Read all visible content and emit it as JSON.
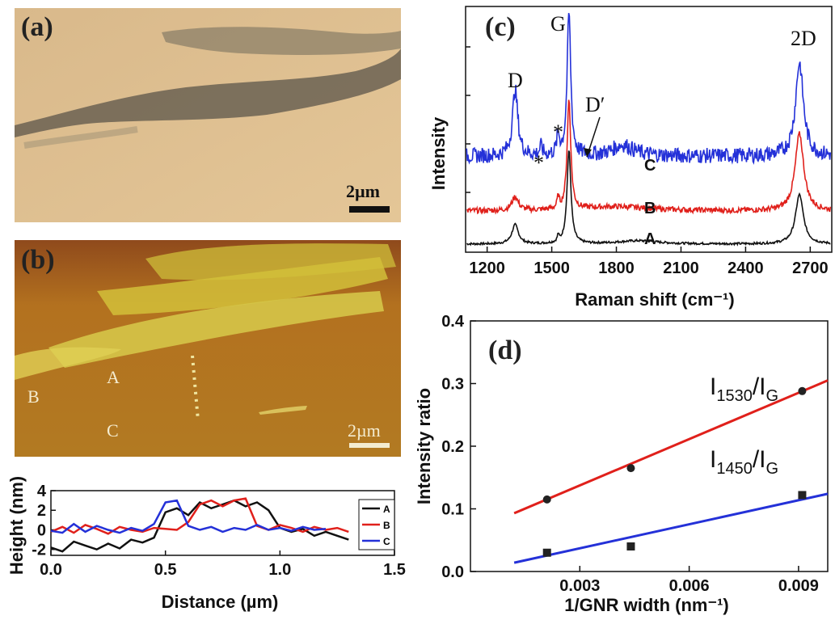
{
  "panels": {
    "a": {
      "label": "(a)",
      "scale_bar": "2µm"
    },
    "b": {
      "label": "(b)",
      "scale_bar": "2µm",
      "markers": [
        "A",
        "B",
        "C"
      ]
    },
    "c": {
      "label": "(c)"
    },
    "d": {
      "label": "(d)"
    }
  },
  "chart_data": [
    {
      "id": "profile",
      "type": "line",
      "xlabel": "Distance (µm)",
      "ylabel": "Height (nm)",
      "xlim": [
        0.0,
        1.5
      ],
      "ylim": [
        -2.6,
        4
      ],
      "xticks": [
        "0.0",
        "0.5",
        "1.0",
        "1.5"
      ],
      "yticks": [
        "4",
        "2",
        "0",
        "-2"
      ],
      "legend": [
        "A",
        "B",
        "C"
      ],
      "legend_position": "right",
      "series": [
        {
          "name": "A",
          "color": "#111111",
          "x": [
            0.0,
            0.05,
            0.1,
            0.15,
            0.2,
            0.25,
            0.3,
            0.35,
            0.4,
            0.45,
            0.5,
            0.55,
            0.6,
            0.65,
            0.7,
            0.75,
            0.8,
            0.85,
            0.9,
            0.95,
            1.0,
            1.05,
            1.1,
            1.15,
            1.2,
            1.25,
            1.3
          ],
          "y": [
            -1.8,
            -2.2,
            -1.2,
            -1.6,
            -2.0,
            -1.4,
            -1.9,
            -1.0,
            -1.3,
            -0.8,
            1.8,
            2.2,
            1.5,
            2.8,
            2.2,
            2.6,
            3.0,
            2.4,
            2.8,
            2.0,
            0.2,
            -0.2,
            0.1,
            -0.6,
            -0.2,
            -0.6,
            -1.0
          ]
        },
        {
          "name": "B",
          "color": "#e0201b",
          "x": [
            0.0,
            0.05,
            0.1,
            0.15,
            0.2,
            0.25,
            0.3,
            0.35,
            0.4,
            0.45,
            0.5,
            0.55,
            0.6,
            0.65,
            0.7,
            0.75,
            0.8,
            0.85,
            0.9,
            0.95,
            1.0,
            1.05,
            1.1,
            1.15,
            1.2,
            1.25,
            1.3
          ],
          "y": [
            -0.2,
            0.3,
            -0.3,
            0.5,
            0.1,
            -0.4,
            0.3,
            0.0,
            -0.2,
            0.2,
            0.1,
            0.0,
            0.8,
            2.6,
            3.0,
            2.4,
            3.0,
            3.2,
            0.4,
            0.0,
            0.5,
            0.2,
            -0.2,
            0.3,
            0.0,
            0.2,
            -0.2
          ]
        },
        {
          "name": "C",
          "color": "#2431d8",
          "x": [
            0.0,
            0.05,
            0.1,
            0.15,
            0.2,
            0.25,
            0.3,
            0.35,
            0.4,
            0.45,
            0.5,
            0.55,
            0.6,
            0.65,
            0.7,
            0.75,
            0.8,
            0.85,
            0.9,
            0.95,
            1.0,
            1.05,
            1.1,
            1.15,
            1.2
          ],
          "y": [
            -0.1,
            -0.3,
            0.6,
            -0.2,
            0.4,
            0.0,
            -0.3,
            0.2,
            -0.1,
            0.6,
            2.8,
            3.0,
            0.4,
            0.0,
            0.3,
            -0.2,
            0.2,
            0.0,
            0.5,
            0.0,
            0.2,
            -0.1,
            0.3,
            0.0,
            0.1
          ]
        }
      ]
    },
    {
      "id": "raman",
      "type": "line",
      "xlabel": "Raman shift (cm⁻¹)",
      "ylabel": "Intensity",
      "xlim": [
        1100,
        2800
      ],
      "xticks": [
        "1200",
        "1500",
        "1800",
        "2100",
        "2400",
        "2700"
      ],
      "peak_labels": [
        "D",
        "G",
        "D′",
        "2D",
        "*",
        "*"
      ],
      "series": [
        {
          "name": "A",
          "color": "#111111",
          "offset": 0.0
        },
        {
          "name": "B",
          "color": "#e0201b",
          "offset": 0.6
        },
        {
          "name": "C",
          "color": "#2431d8",
          "offset": 1.6
        }
      ],
      "peaks_cm1": {
        "D": 1330,
        "G": 1580,
        "D_prime": 1620,
        "2D": 2650,
        "star1": 1450,
        "star2": 1530
      }
    },
    {
      "id": "ratio",
      "type": "scatter",
      "xlabel": "1/GNR width (nm⁻¹)",
      "ylabel": "Intensity ratio",
      "xlim": [
        0.0,
        0.0098
      ],
      "ylim": [
        0.0,
        0.4
      ],
      "xticks": [
        "0.003",
        "0.006",
        "0.009"
      ],
      "yticks": [
        "0.0",
        "0.1",
        "0.2",
        "0.3",
        "0.4"
      ],
      "series": [
        {
          "name": "I1530/IG",
          "color": "#e0201b",
          "marker": "circle",
          "x": [
            0.0021,
            0.0044,
            0.0091
          ],
          "y": [
            0.115,
            0.165,
            0.288
          ],
          "fit": [
            [
              0.0012,
              0.093
            ],
            [
              0.0098,
              0.305
            ]
          ]
        },
        {
          "name": "I1450/IG",
          "color": "#2431d8",
          "marker": "square",
          "x": [
            0.0021,
            0.0044,
            0.0091
          ],
          "y": [
            0.03,
            0.04,
            0.122
          ],
          "fit": [
            [
              0.0012,
              0.014
            ],
            [
              0.0098,
              0.124
            ]
          ]
        }
      ],
      "annotations": [
        {
          "main": "I",
          "sub": "1530",
          "slash": "/I",
          "sub2": "G"
        },
        {
          "main": "I",
          "sub": "1450",
          "slash": "/I",
          "sub2": "G"
        }
      ]
    }
  ]
}
